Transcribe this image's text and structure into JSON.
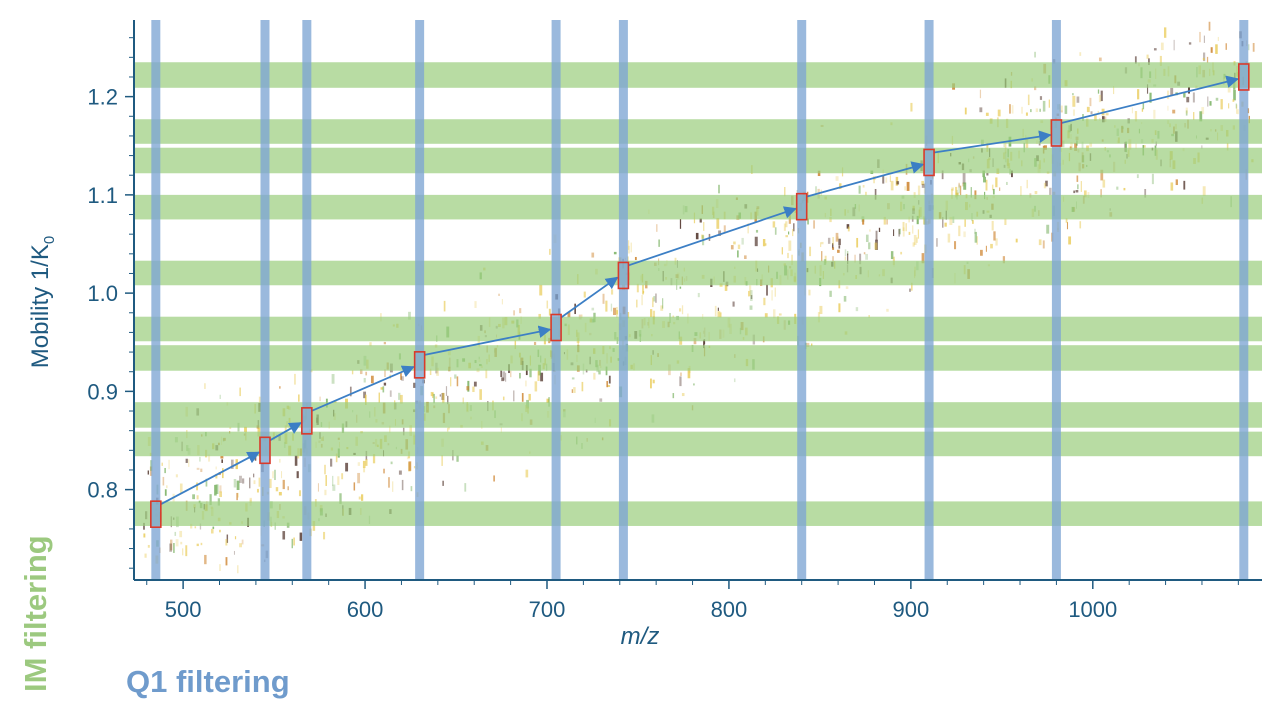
{
  "chart_data": {
    "type": "scatter",
    "title": "",
    "xlabel": "m/z",
    "ylabel": "Mobility 1/K",
    "ylabel_subscript": "0",
    "xlim": [
      473,
      1093
    ],
    "ylim": [
      0.708,
      1.278
    ],
    "x_ticks": [
      500,
      600,
      700,
      800,
      900,
      1000
    ],
    "x_tick_labels": [
      "500",
      "600",
      "700",
      "800",
      "900",
      "1000"
    ],
    "y_ticks": [
      0.8,
      0.9,
      1.0,
      1.1,
      1.2
    ],
    "y_tick_labels": [
      "0.8",
      "0.9",
      "1.0",
      "1.1",
      "1.2"
    ],
    "q1_windows_mz": [
      485,
      545,
      568,
      630,
      705,
      742,
      840,
      910,
      980,
      1083
    ],
    "im_bands": [
      [
        0.763,
        0.788
      ],
      [
        0.834,
        0.859
      ],
      [
        0.863,
        0.889
      ],
      [
        0.921,
        0.947
      ],
      [
        0.951,
        0.976
      ],
      [
        1.008,
        1.033
      ],
      [
        1.075,
        1.1
      ],
      [
        1.122,
        1.148
      ],
      [
        1.152,
        1.177
      ],
      [
        1.209,
        1.235
      ]
    ],
    "precursor_boxes": [
      {
        "mz": 485,
        "mobility": 0.775
      },
      {
        "mz": 545,
        "mobility": 0.84
      },
      {
        "mz": 568,
        "mobility": 0.87
      },
      {
        "mz": 630,
        "mobility": 0.927
      },
      {
        "mz": 705,
        "mobility": 0.965
      },
      {
        "mz": 742,
        "mobility": 1.018
      },
      {
        "mz": 840,
        "mobility": 1.088
      },
      {
        "mz": 910,
        "mobility": 1.133
      },
      {
        "mz": 980,
        "mobility": 1.163
      },
      {
        "mz": 1083,
        "mobility": 1.22
      }
    ],
    "legend": {
      "im": "IM filtering",
      "q1": "Q1 filtering"
    },
    "colors": {
      "axis": "#1f5a80",
      "q1_band": "#7ea5d4",
      "im_band": "#9ccf7f",
      "box": "#d93a2b",
      "arrow": "#3c7fc5",
      "feature_dark": "#3a1a10",
      "feature_orange": "#c9791d",
      "feature_yellow": "#e8c84e",
      "feature_green": "#6aa84f"
    }
  }
}
